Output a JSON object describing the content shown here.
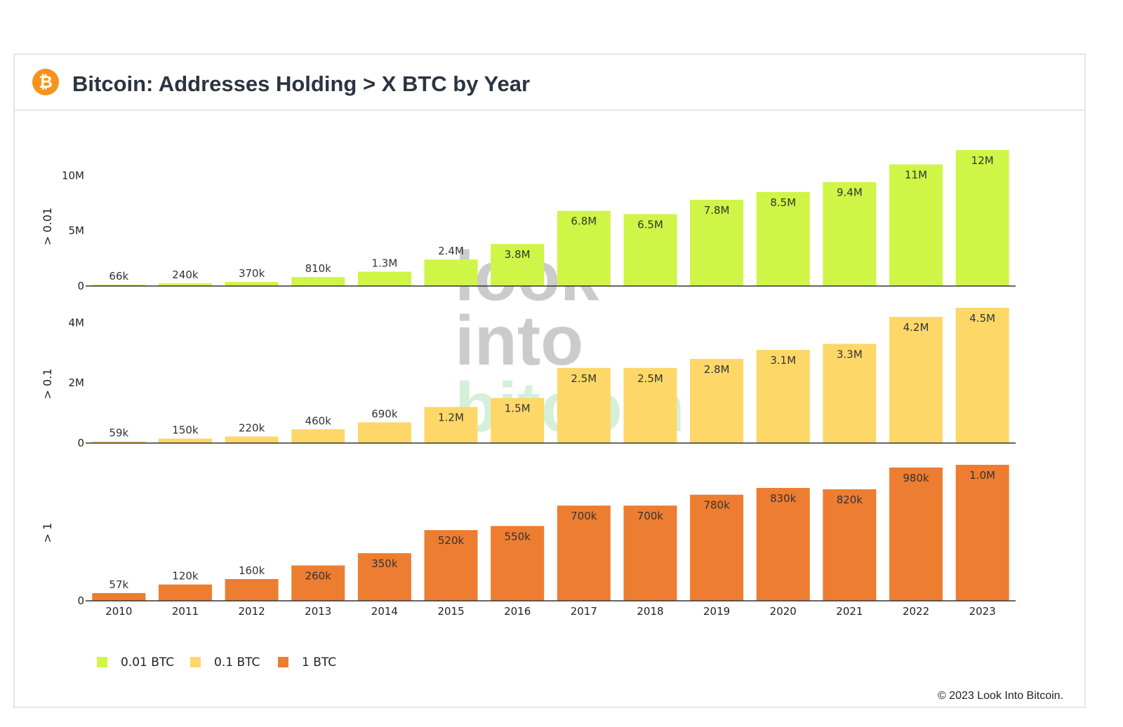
{
  "header": {
    "logo_glyph": "₿",
    "title": "Bitcoin: Addresses Holding > X BTC by Year"
  },
  "watermark": [
    "look",
    "into",
    "bitcoin"
  ],
  "copyright": "© 2023 Look Into Bitcoin.",
  "chart_data": {
    "type": "bar",
    "title": "Bitcoin: Addresses Holding > X BTC by Year",
    "categories": [
      "2010",
      "2011",
      "2012",
      "2013",
      "2014",
      "2015",
      "2016",
      "2017",
      "2018",
      "2019",
      "2020",
      "2021",
      "2022",
      "2023"
    ],
    "legend_position": "bottom-left",
    "panels": [
      {
        "name": "0.01 BTC",
        "ylabel": "> 0.01",
        "color": "#cff546",
        "ylim": [
          0,
          12300000
        ],
        "yticks": [
          {
            "v": 0,
            "label": "0"
          },
          {
            "v": 5000000,
            "label": "5M"
          },
          {
            "v": 10000000,
            "label": "10M"
          }
        ],
        "values": [
          66000,
          240000,
          370000,
          810000,
          1300000,
          2400000,
          3800000,
          6800000,
          6500000,
          7800000,
          8500000,
          9400000,
          11000000,
          12300000
        ],
        "labels": [
          "66k",
          "240k",
          "370k",
          "810k",
          "1.3M",
          "2.4M",
          "3.8M",
          "6.8M",
          "6.5M",
          "7.8M",
          "8.5M",
          "9.4M",
          "11M",
          "12M"
        ]
      },
      {
        "name": "0.1 BTC",
        "ylabel": "> 0.1",
        "color": "#fdd869",
        "ylim": [
          0,
          4500000
        ],
        "yticks": [
          {
            "v": 0,
            "label": "0"
          },
          {
            "v": 2000000,
            "label": "2M"
          },
          {
            "v": 4000000,
            "label": "4M"
          }
        ],
        "values": [
          59000,
          150000,
          220000,
          460000,
          690000,
          1200000,
          1500000,
          2500000,
          2500000,
          2800000,
          3100000,
          3300000,
          4200000,
          4500000
        ],
        "labels": [
          "59k",
          "150k",
          "220k",
          "460k",
          "690k",
          "1.2M",
          "1.5M",
          "2.5M",
          "2.5M",
          "2.8M",
          "3.1M",
          "3.3M",
          "4.2M",
          "4.5M"
        ]
      },
      {
        "name": "1 BTC",
        "ylabel": "> 1",
        "color": "#ed7d31",
        "ylim": [
          0,
          1000000
        ],
        "yticks": [
          {
            "v": 0,
            "label": "0"
          }
        ],
        "values": [
          57000,
          120000,
          160000,
          260000,
          350000,
          520000,
          550000,
          700000,
          700000,
          780000,
          830000,
          820000,
          980000,
          1000000
        ],
        "labels": [
          "57k",
          "120k",
          "160k",
          "260k",
          "350k",
          "520k",
          "550k",
          "700k",
          "700k",
          "780k",
          "830k",
          "820k",
          "980k",
          "1.0M"
        ]
      }
    ]
  }
}
